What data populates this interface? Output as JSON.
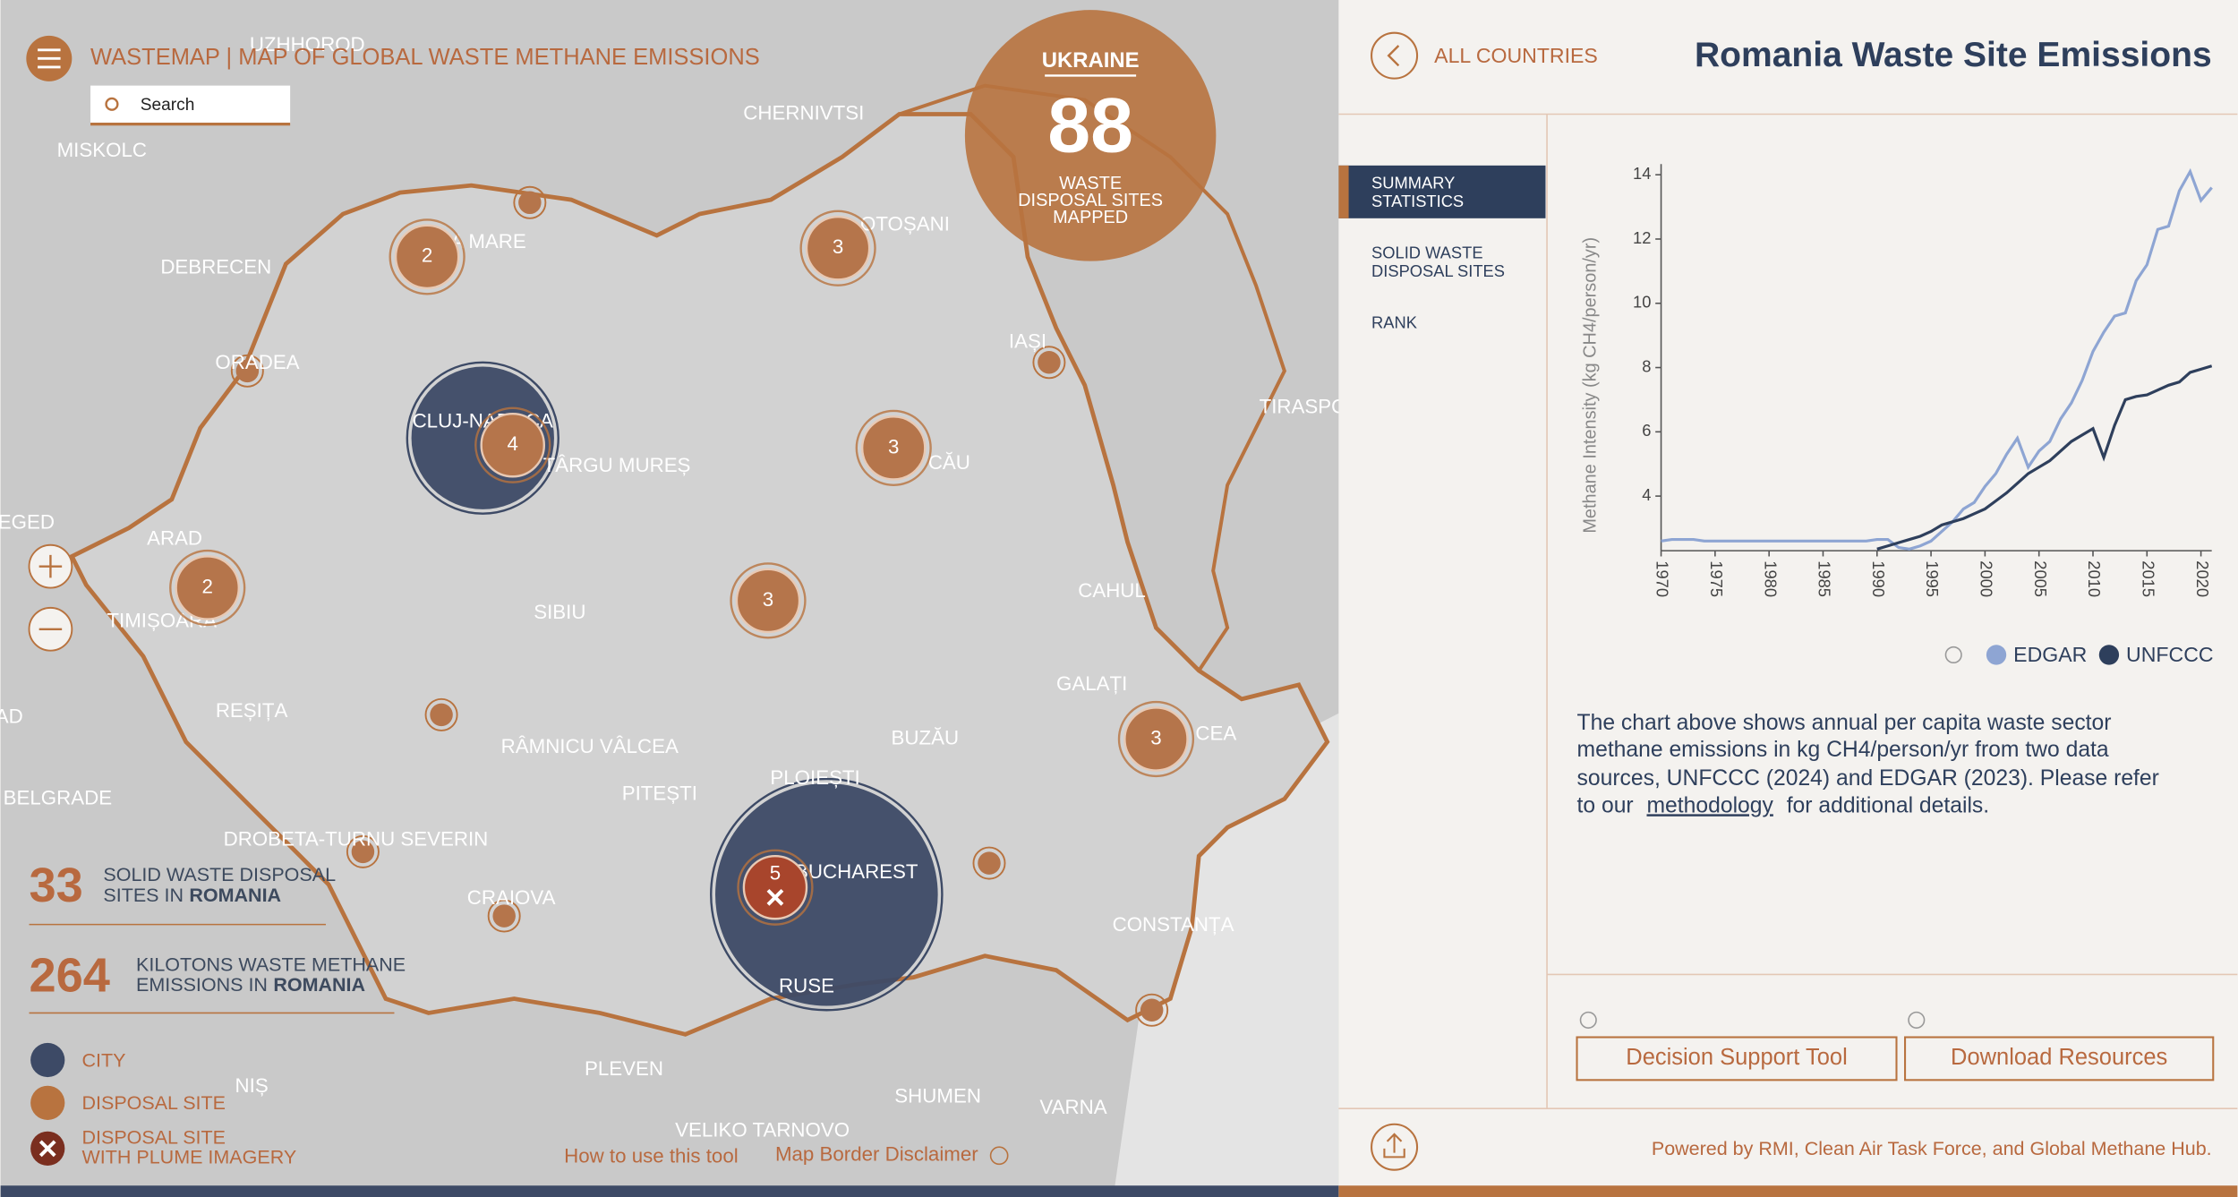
{
  "header": {
    "title": "WASTEMAP | MAP OF GLOBAL WASTE METHANE EMISSIONS",
    "search_placeholder": "Search"
  },
  "map": {
    "labels": [
      "UZHHOROD",
      "CHERNIVTSI",
      "MISKOLC",
      "DEBRECEN",
      "ORADEA",
      "CLUJ-NAPOCA",
      "TÂRGU MUREȘ",
      "IAȘI",
      "TIRASPO",
      "EGED",
      "ARAD",
      "TIMIȘOARA",
      "SIBIU",
      "CAHUL",
      "GALAȚI",
      "REȘIȚA",
      "RÂMNICU VÂLCEA",
      "BUZĂU",
      "PLOIEȘTI",
      "PITEȘTI",
      "BELGRADE",
      "DROBETA-TURNU SEVERIN",
      "CRAIOVA",
      "BUCHAREST",
      "CONSTANȚA",
      "RUSE",
      "PLEVEN",
      "NIȘ",
      "SHUMEN",
      "VARNA",
      "VELIKO TARNOVO",
      "CEA",
      "A MARE",
      "OTOȘANI",
      "CĂU",
      "AD"
    ],
    "clusters": [
      2,
      3,
      4,
      3,
      2,
      3,
      3,
      5
    ],
    "callout": {
      "country": "UKRAINE",
      "count": 88,
      "caption": [
        "WASTE",
        "DISPOSAL SITES",
        "MAPPED"
      ]
    },
    "links": [
      "How to use this tool",
      "Map Border Disclaimer"
    ]
  },
  "stats": [
    {
      "value": 33,
      "line1": "SOLID WASTE DISPOSAL",
      "line2": "SITES IN",
      "country": "ROMANIA"
    },
    {
      "value": 264,
      "line1": "KILOTONS WASTE METHANE",
      "line2": "EMISSIONS IN",
      "country": "ROMANIA"
    }
  ],
  "legend": [
    [
      "CITY"
    ],
    [
      "DISPOSAL SITE"
    ],
    [
      "DISPOSAL SITE",
      "WITH PLUME IMAGERY"
    ]
  ],
  "panel": {
    "back": "ALL COUNTRIES",
    "title": "Romania Waste Site Emissions",
    "tabs": [
      [
        "SUMMARY",
        "STATISTICS"
      ],
      [
        "SOLID WASTE",
        "DISPOSAL SITES"
      ],
      [
        "RANK"
      ]
    ],
    "description": {
      "lines": [
        "The chart above shows annual per capita waste sector",
        "methane emissions in kg CH4/person/yr from two data",
        "sources, UNFCCC (2024) and EDGAR (2023). Please refer",
        "to our"
      ],
      "link": "methodology",
      "tail": "for additional details."
    },
    "buttons": [
      "Decision Support Tool",
      "Download Resources"
    ],
    "footer": "Powered by RMI, Clean Air Task Force, and Global Methane Hub."
  },
  "chart_data": {
    "type": "line",
    "y_label": "Methane Intensity (kg CH4/person/yr)",
    "x": [
      1970,
      1971,
      1972,
      1973,
      1974,
      1975,
      1976,
      1977,
      1978,
      1979,
      1980,
      1981,
      1982,
      1983,
      1984,
      1985,
      1986,
      1987,
      1988,
      1989,
      1990,
      1991,
      1992,
      1993,
      1994,
      1995,
      1996,
      1997,
      1998,
      1999,
      2000,
      2001,
      2002,
      2003,
      2004,
      2005,
      2006,
      2007,
      2008,
      2009,
      2010,
      2011,
      2012,
      2013,
      2014,
      2015,
      2016,
      2017,
      2018,
      2019,
      2020,
      2021
    ],
    "xlim": [
      1970,
      2021
    ],
    "xticks": [
      1970,
      1975,
      1980,
      1985,
      1990,
      1995,
      2000,
      2005,
      2010,
      2015,
      2020
    ],
    "ylim": [
      2.3,
      14.2
    ],
    "yticks": [
      4,
      6,
      8,
      10,
      12,
      14
    ],
    "series": [
      {
        "name": "EDGAR",
        "color": "#8ea5d3",
        "values": [
          2.6,
          2.65,
          2.65,
          2.65,
          2.6,
          2.6,
          2.6,
          2.6,
          2.6,
          2.6,
          2.6,
          2.6,
          2.6,
          2.6,
          2.6,
          2.6,
          2.6,
          2.6,
          2.6,
          2.6,
          2.65,
          2.65,
          2.4,
          2.35,
          2.45,
          2.6,
          2.9,
          3.2,
          3.6,
          3.8,
          4.3,
          4.7,
          5.3,
          5.8,
          4.9,
          5.4,
          5.7,
          6.4,
          6.9,
          7.6,
          8.5,
          9.1,
          9.6,
          9.7,
          10.7,
          11.2,
          12.3,
          12.4,
          13.5,
          14.1,
          13.2,
          13.6
        ]
      },
      {
        "name": "UNFCCC",
        "color": "#2e3f5c",
        "values": [
          null,
          null,
          null,
          null,
          null,
          null,
          null,
          null,
          null,
          null,
          null,
          null,
          null,
          null,
          null,
          null,
          null,
          null,
          null,
          null,
          2.35,
          2.45,
          2.55,
          2.65,
          2.75,
          2.9,
          3.1,
          3.2,
          3.3,
          3.45,
          3.6,
          3.85,
          4.1,
          4.4,
          4.7,
          4.9,
          5.1,
          5.4,
          5.7,
          5.9,
          6.1,
          5.2,
          6.2,
          7.0,
          7.1,
          7.15,
          7.3,
          7.45,
          7.55,
          7.85,
          7.95,
          8.05
        ]
      }
    ]
  }
}
